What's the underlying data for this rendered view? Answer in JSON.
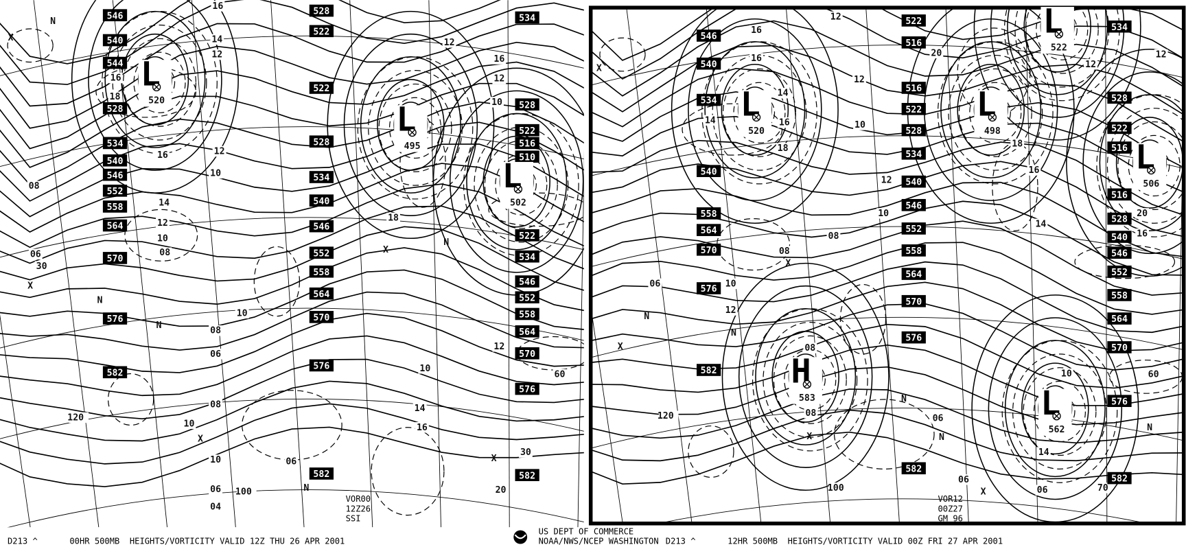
{
  "panels": [
    {
      "footer": {
        "code": "D213 ^",
        "title": "00HR 500MB  HEIGHTS/VORTICITY VALID 12Z THU 26 APR 2001"
      },
      "height_labels": [
        "546",
        "540",
        "544",
        "528",
        "534",
        "540",
        "546",
        "552",
        "558",
        "564",
        "570",
        "576",
        "582",
        "528",
        "522",
        "522",
        "528",
        "534",
        "540",
        "546",
        "552",
        "558",
        "564",
        "570",
        "576",
        "582",
        "534",
        "528",
        "522",
        "516",
        "510",
        "522",
        "534",
        "546",
        "552",
        "558",
        "564",
        "570",
        "576",
        "582"
      ],
      "centers": [
        {
          "symbol": "L",
          "value": "520"
        },
        {
          "symbol": "L",
          "value": "495"
        },
        {
          "symbol": "L",
          "value": "502"
        }
      ],
      "vorticity_labels": [
        "16",
        "14",
        "12",
        "16",
        "18",
        "16",
        "12",
        "10",
        "14",
        "12",
        "10",
        "08",
        "08",
        "06",
        "10",
        "08",
        "06",
        "08",
        "10",
        "10",
        "06",
        "06",
        "04",
        "12",
        "16",
        "12",
        "10",
        "18",
        "10",
        "12",
        "14",
        "16",
        "30",
        "120",
        "100",
        "30",
        "60",
        "20"
      ],
      "markers": [
        "X",
        "N",
        "N",
        "X",
        "N",
        "X",
        "X",
        "N",
        "X",
        "N"
      ],
      "stamp": [
        "VOR00",
        "12Z26",
        "SSI"
      ]
    },
    {
      "footer": {
        "code": "D213 ^",
        "title": "12HR 500MB  HEIGHTS/VORTICITY VALID 00Z FRI 27 APR 2001"
      },
      "height_labels": [
        "546",
        "540",
        "534",
        "540",
        "558",
        "564",
        "570",
        "576",
        "582",
        "522",
        "516",
        "516",
        "522",
        "528",
        "534",
        "540",
        "546",
        "552",
        "558",
        "564",
        "570",
        "576",
        "582",
        "534",
        "528",
        "522",
        "516",
        "516",
        "528",
        "540",
        "546",
        "552",
        "558",
        "564",
        "570",
        "576",
        "582"
      ],
      "centers": [
        {
          "symbol": "L",
          "value": "520"
        },
        {
          "symbol": "L",
          "value": "498"
        },
        {
          "symbol": "L",
          "value": "522"
        },
        {
          "symbol": "L",
          "value": "506"
        },
        {
          "symbol": "L",
          "value": "562"
        },
        {
          "symbol": "H",
          "value": "583"
        }
      ],
      "vorticity_labels": [
        "12",
        "16",
        "16",
        "14",
        "16",
        "18",
        "14",
        "12",
        "10",
        "12",
        "10",
        "08",
        "08",
        "06",
        "10",
        "12",
        "08",
        "08",
        "06",
        "06",
        "10",
        "16",
        "14",
        "06",
        "20",
        "18",
        "16",
        "14",
        "12",
        "12",
        "20",
        "16",
        "120",
        "100",
        "60",
        "70"
      ],
      "markers": [
        "X",
        "N",
        "X",
        "N",
        "X",
        "N",
        "X",
        "N",
        "X",
        "N"
      ],
      "stamp": [
        "VOR12",
        "00Z27",
        "GM 96"
      ]
    }
  ],
  "agency": [
    "US DEPT OF COMMERCE",
    "NOAA/NWS/NCEP WASHINGTON"
  ]
}
